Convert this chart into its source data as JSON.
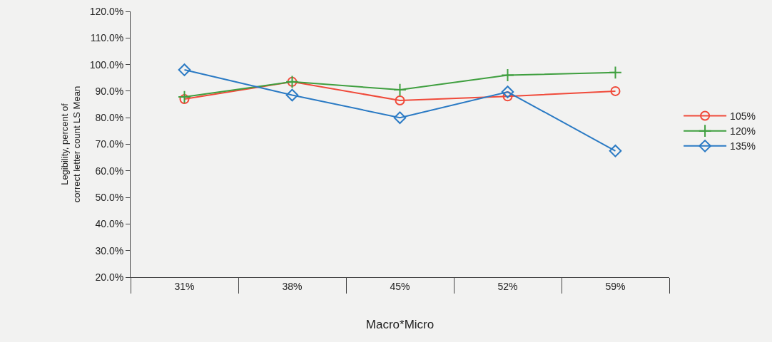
{
  "chart_data": {
    "type": "line",
    "xlabel": "Macro*Micro",
    "ylabel": "Legibility, percent of correct letter count LS Mean",
    "categories": [
      "31%",
      "38%",
      "45%",
      "52%",
      "59%"
    ],
    "series": [
      {
        "name": "105%",
        "color": "#f04a3a",
        "marker": "circle",
        "values": [
          87.0,
          93.5,
          86.5,
          88.0,
          90.0
        ]
      },
      {
        "name": "120%",
        "color": "#3f9f3f",
        "marker": "cross",
        "values": [
          87.8,
          93.5,
          90.5,
          96.0,
          97.0
        ]
      },
      {
        "name": "135%",
        "color": "#2a7ac4",
        "marker": "diamond",
        "values": [
          98.0,
          88.5,
          80.0,
          89.7,
          67.5
        ]
      }
    ],
    "ylim": [
      20,
      120
    ],
    "yticks": [
      {
        "value": 20,
        "label": "20.0%"
      },
      {
        "value": 30,
        "label": "30.0%"
      },
      {
        "value": 40,
        "label": "40.0%"
      },
      {
        "value": 50,
        "label": "50.0%"
      },
      {
        "value": 60,
        "label": "60.0%"
      },
      {
        "value": 70,
        "label": "70.0%"
      },
      {
        "value": 80,
        "label": "80.0%"
      },
      {
        "value": 90,
        "label": "90.0%"
      },
      {
        "value": 100,
        "label": "100.0%"
      },
      {
        "value": 110,
        "label": "110.0%"
      },
      {
        "value": 120,
        "label": "120.0%"
      }
    ],
    "grid": false,
    "legend": "right",
    "line_style": "solid"
  }
}
